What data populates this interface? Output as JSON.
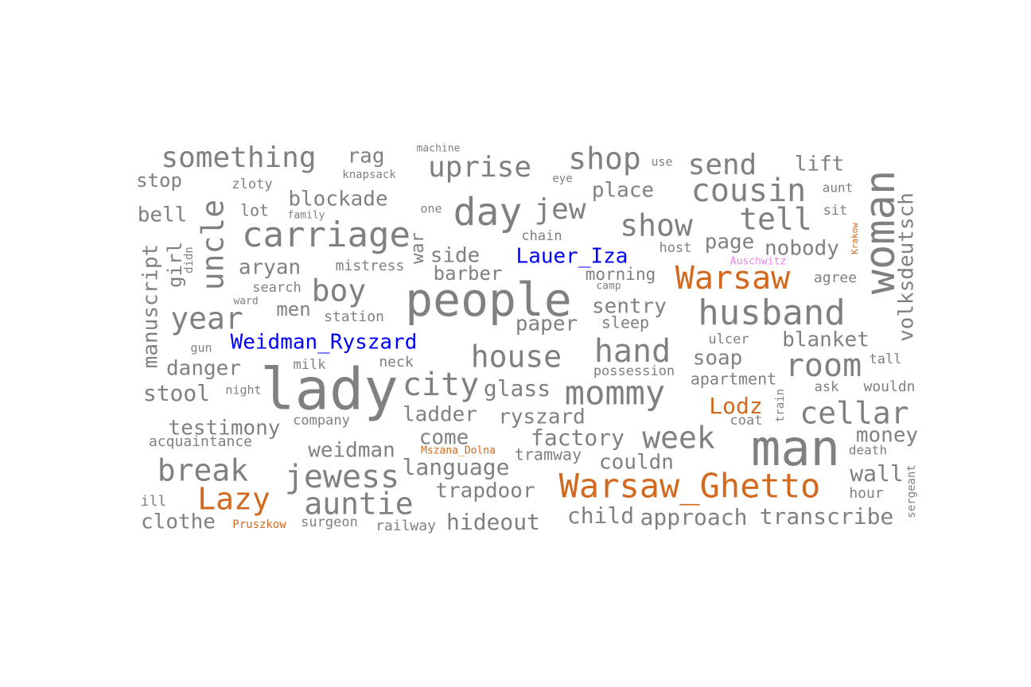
{
  "colors": {
    "gray": "#808080",
    "orange": "#d2691e",
    "blue": "#0000ff",
    "pink": "#ee82ee"
  },
  "words": [
    {
      "text": "something",
      "color": "gray"
    },
    {
      "text": "rag",
      "color": "gray"
    },
    {
      "text": "machine",
      "color": "gray"
    },
    {
      "text": "uprise",
      "color": "gray"
    },
    {
      "text": "shop",
      "color": "gray"
    },
    {
      "text": "use",
      "color": "gray"
    },
    {
      "text": "send",
      "color": "gray"
    },
    {
      "text": "lift",
      "color": "gray"
    },
    {
      "text": "woman",
      "color": "gray"
    },
    {
      "text": "stop",
      "color": "gray"
    },
    {
      "text": "knapsack",
      "color": "gray"
    },
    {
      "text": "zloty",
      "color": "gray"
    },
    {
      "text": "eye",
      "color": "gray"
    },
    {
      "text": "place",
      "color": "gray"
    },
    {
      "text": "cousin",
      "color": "gray"
    },
    {
      "text": "aunt",
      "color": "gray"
    },
    {
      "text": "blockade",
      "color": "gray"
    },
    {
      "text": "uncle",
      "color": "gray"
    },
    {
      "text": "day",
      "color": "gray"
    },
    {
      "text": "jew",
      "color": "gray"
    },
    {
      "text": "one",
      "color": "gray"
    },
    {
      "text": "bell",
      "color": "gray"
    },
    {
      "text": "lot",
      "color": "gray"
    },
    {
      "text": "family",
      "color": "gray"
    },
    {
      "text": "tell",
      "color": "gray"
    },
    {
      "text": "sit",
      "color": "gray"
    },
    {
      "text": "volksdeutsch",
      "color": "gray"
    },
    {
      "text": "Krakow",
      "color": "orange"
    },
    {
      "text": "carriage",
      "color": "gray"
    },
    {
      "text": "show",
      "color": "gray"
    },
    {
      "text": "chain",
      "color": "gray"
    },
    {
      "text": "war",
      "color": "gray"
    },
    {
      "text": "page",
      "color": "gray"
    },
    {
      "text": "nobody",
      "color": "gray"
    },
    {
      "text": "manuscript",
      "color": "gray"
    },
    {
      "text": "girl",
      "color": "gray"
    },
    {
      "text": "didn",
      "color": "gray"
    },
    {
      "text": "side",
      "color": "gray"
    },
    {
      "text": "Lauer_Iza",
      "color": "blue"
    },
    {
      "text": "host",
      "color": "gray"
    },
    {
      "text": "Auschwitz",
      "color": "pink"
    },
    {
      "text": "aryan",
      "color": "gray"
    },
    {
      "text": "mistress",
      "color": "gray"
    },
    {
      "text": "barber",
      "color": "gray"
    },
    {
      "text": "morning",
      "color": "gray"
    },
    {
      "text": "Warsaw",
      "color": "orange"
    },
    {
      "text": "agree",
      "color": "gray"
    },
    {
      "text": "search",
      "color": "gray"
    },
    {
      "text": "boy",
      "color": "gray"
    },
    {
      "text": "people",
      "color": "gray"
    },
    {
      "text": "camp",
      "color": "gray"
    },
    {
      "text": "ward",
      "color": "gray"
    },
    {
      "text": "men",
      "color": "gray"
    },
    {
      "text": "sentry",
      "color": "gray"
    },
    {
      "text": "husband",
      "color": "gray"
    },
    {
      "text": "year",
      "color": "gray"
    },
    {
      "text": "station",
      "color": "gray"
    },
    {
      "text": "paper",
      "color": "gray"
    },
    {
      "text": "sleep",
      "color": "gray"
    },
    {
      "text": "Weidman_Ryszard",
      "color": "blue"
    },
    {
      "text": "gun",
      "color": "gray"
    },
    {
      "text": "ulcer",
      "color": "gray"
    },
    {
      "text": "blanket",
      "color": "gray"
    },
    {
      "text": "hand",
      "color": "gray"
    },
    {
      "text": "house",
      "color": "gray"
    },
    {
      "text": "soap",
      "color": "gray"
    },
    {
      "text": "danger",
      "color": "gray"
    },
    {
      "text": "milk",
      "color": "gray"
    },
    {
      "text": "neck",
      "color": "gray"
    },
    {
      "text": "possession",
      "color": "gray"
    },
    {
      "text": "room",
      "color": "gray"
    },
    {
      "text": "tall",
      "color": "gray"
    },
    {
      "text": "lady",
      "color": "gray"
    },
    {
      "text": "city",
      "color": "gray"
    },
    {
      "text": "apartment",
      "color": "gray"
    },
    {
      "text": "stool",
      "color": "gray"
    },
    {
      "text": "night",
      "color": "gray"
    },
    {
      "text": "glass",
      "color": "gray"
    },
    {
      "text": "mommy",
      "color": "gray"
    },
    {
      "text": "ask",
      "color": "gray"
    },
    {
      "text": "wouldn",
      "color": "gray"
    },
    {
      "text": "train",
      "color": "gray"
    },
    {
      "text": "Lodz",
      "color": "orange"
    },
    {
      "text": "cellar",
      "color": "gray"
    },
    {
      "text": "ladder",
      "color": "gray"
    },
    {
      "text": "ryszard",
      "color": "gray"
    },
    {
      "text": "coat",
      "color": "gray"
    },
    {
      "text": "testimony",
      "color": "gray"
    },
    {
      "text": "company",
      "color": "gray"
    },
    {
      "text": "come",
      "color": "gray"
    },
    {
      "text": "factory",
      "color": "gray"
    },
    {
      "text": "week",
      "color": "gray"
    },
    {
      "text": "money",
      "color": "gray"
    },
    {
      "text": "acquaintance",
      "color": "gray"
    },
    {
      "text": "man",
      "color": "gray"
    },
    {
      "text": "weidman",
      "color": "gray"
    },
    {
      "text": "Mszana_Dolna",
      "color": "orange"
    },
    {
      "text": "tramway",
      "color": "gray"
    },
    {
      "text": "death",
      "color": "gray"
    },
    {
      "text": "break",
      "color": "gray"
    },
    {
      "text": "language",
      "color": "gray"
    },
    {
      "text": "couldn",
      "color": "gray"
    },
    {
      "text": "jewess",
      "color": "gray"
    },
    {
      "text": "wall",
      "color": "gray"
    },
    {
      "text": "Warsaw_Ghetto",
      "color": "orange"
    },
    {
      "text": "Lazy",
      "color": "orange"
    },
    {
      "text": "trapdoor",
      "color": "gray"
    },
    {
      "text": "sergeant",
      "color": "gray"
    },
    {
      "text": "ill",
      "color": "gray"
    },
    {
      "text": "auntie",
      "color": "gray"
    },
    {
      "text": "hour",
      "color": "gray"
    },
    {
      "text": "child",
      "color": "gray"
    },
    {
      "text": "approach",
      "color": "gray"
    },
    {
      "text": "transcribe",
      "color": "gray"
    },
    {
      "text": "clothe",
      "color": "gray"
    },
    {
      "text": "Pruszkow",
      "color": "orange"
    },
    {
      "text": "surgeon",
      "color": "gray"
    },
    {
      "text": "railway",
      "color": "gray"
    },
    {
      "text": "hideout",
      "color": "gray"
    }
  ]
}
